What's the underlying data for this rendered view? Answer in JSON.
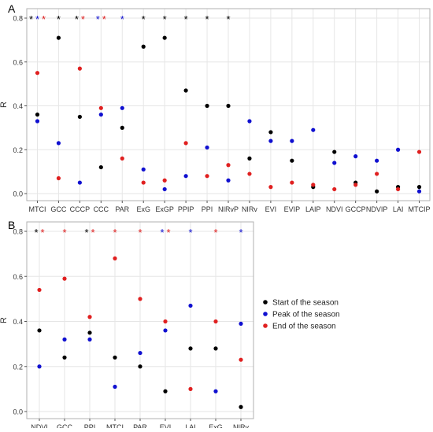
{
  "colors": {
    "start": "#000000",
    "peak": "#1010d0",
    "end": "#e02020",
    "grid": "#e6e6e6",
    "panel_border": "#b0b0b0",
    "text": "#333333"
  },
  "legend": {
    "items": [
      {
        "key": "start",
        "label": "Start of the season"
      },
      {
        "key": "peak",
        "label": "Peak of the season"
      },
      {
        "key": "end",
        "label": "End of the season"
      }
    ]
  },
  "chart_data": [
    {
      "panel_label": "A",
      "type": "scatter",
      "title": "",
      "xlabel": "",
      "ylabel": "R",
      "ylim": [
        0,
        0.8
      ],
      "yticks": [
        "0.0",
        "0.2",
        "0.4",
        "0.6",
        "0.8"
      ],
      "grid": true,
      "legend": "none",
      "categories": [
        "MTCI",
        "GCC",
        "CCCP",
        "CCC",
        "PAR",
        "ExG",
        "ExGP",
        "PPIP",
        "PPI",
        "NIRvP",
        "NIRv",
        "EVI",
        "EVIP",
        "LAIP",
        "NDVI",
        "GCCP",
        "NDVIP",
        "LAI",
        "MTCIP"
      ],
      "series": [
        {
          "key": "start",
          "values": [
            0.36,
            0.71,
            0.35,
            0.12,
            0.3,
            0.67,
            0.71,
            0.47,
            0.4,
            0.4,
            0.16,
            0.28,
            0.15,
            0.03,
            0.19,
            0.05,
            0.01,
            0.03,
            0.03
          ]
        },
        {
          "key": "peak",
          "values": [
            0.33,
            0.23,
            0.05,
            0.36,
            0.39,
            0.11,
            0.02,
            0.08,
            0.21,
            0.06,
            0.33,
            0.24,
            0.24,
            0.29,
            0.14,
            0.17,
            0.15,
            0.2,
            0.01
          ]
        },
        {
          "key": "end",
          "values": [
            0.55,
            0.07,
            0.57,
            0.39,
            0.16,
            0.05,
            0.06,
            0.23,
            0.08,
            0.13,
            0.09,
            0.03,
            0.05,
            0.04,
            0.02,
            0.04,
            0.09,
            0.02,
            0.19
          ]
        }
      ],
      "significance": [
        [
          "start",
          "peak",
          "end"
        ],
        [
          "start"
        ],
        [
          "start",
          "end"
        ],
        [
          "peak",
          "end"
        ],
        [
          "peak"
        ],
        [
          "start"
        ],
        [
          "start"
        ],
        [
          "start"
        ],
        [
          "start"
        ],
        [
          "start"
        ],
        [],
        [],
        [],
        [],
        [],
        [],
        [],
        [],
        []
      ]
    },
    {
      "panel_label": "B",
      "type": "scatter",
      "title": "",
      "xlabel": "",
      "ylabel": "R",
      "ylim": [
        0,
        0.8
      ],
      "yticks": [
        "0.0",
        "0.2",
        "0.4",
        "0.6",
        "0.8"
      ],
      "grid": true,
      "legend": "right",
      "categories": [
        "NDVI",
        "GCC",
        "PPI",
        "MTCI",
        "PAR",
        "EVI",
        "LAI",
        "ExG",
        "NIRv"
      ],
      "series": [
        {
          "key": "start",
          "values": [
            0.36,
            0.24,
            0.35,
            0.24,
            0.2,
            0.09,
            0.28,
            0.28,
            0.02
          ]
        },
        {
          "key": "peak",
          "values": [
            0.2,
            0.32,
            0.32,
            0.11,
            0.26,
            0.36,
            0.47,
            0.09,
            0.39
          ]
        },
        {
          "key": "end",
          "values": [
            0.54,
            0.59,
            0.42,
            0.68,
            0.5,
            0.4,
            0.1,
            0.4,
            0.23
          ]
        }
      ],
      "significance": [
        [
          "start",
          "end"
        ],
        [
          "end"
        ],
        [
          "start",
          "end"
        ],
        [
          "end"
        ],
        [
          "end"
        ],
        [
          "peak",
          "end"
        ],
        [
          "peak"
        ],
        [
          "end"
        ],
        [
          "peak"
        ]
      ]
    }
  ]
}
